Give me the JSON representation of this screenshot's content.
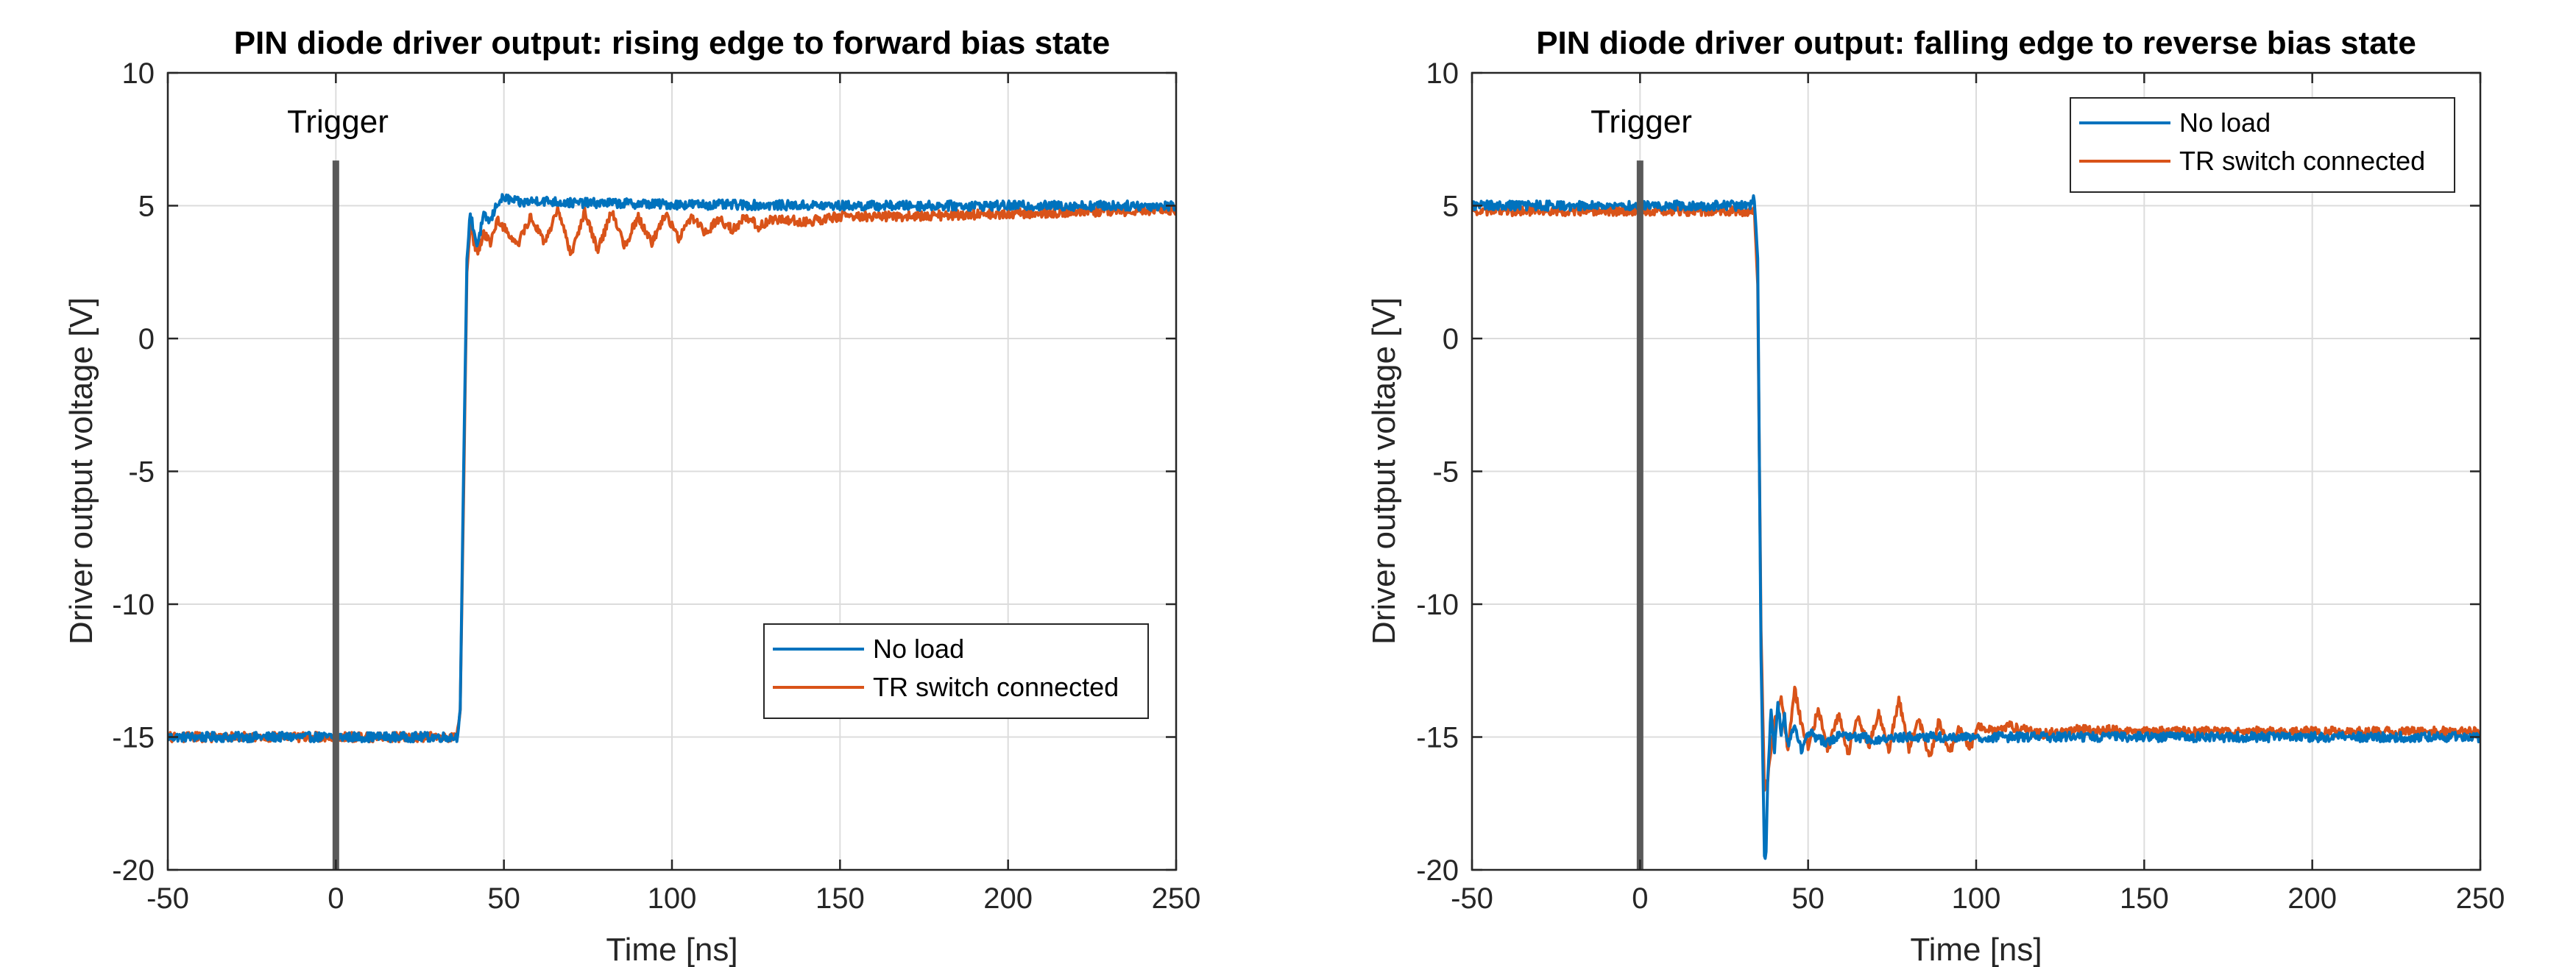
{
  "colors": {
    "no_load": "#0072BD",
    "tr_switch": "#D95319",
    "trigger": "#595959",
    "grid": "#DCDCDC",
    "axis": "#262626"
  },
  "chart_data": [
    {
      "type": "line",
      "title": "PIN diode driver output: rising edge to forward bias state",
      "xlabel": "Time [ns]",
      "ylabel": "Driver output voltage [V]",
      "xlim": [
        -50,
        250
      ],
      "ylim": [
        -20,
        10
      ],
      "xticks": [
        -50,
        0,
        50,
        100,
        150,
        200,
        250
      ],
      "yticks": [
        -20,
        -15,
        -10,
        -5,
        0,
        5,
        10
      ],
      "grid": true,
      "legend_position": "bottom-right",
      "annotation": {
        "text": "Trigger",
        "x": 0
      },
      "trigger_line": {
        "x": 0,
        "y_range": [
          -20,
          6.7
        ]
      },
      "series": [
        {
          "name": "No load",
          "color_key": "no_load",
          "x": [
            -50,
            36,
            37,
            38,
            39,
            40,
            42,
            44,
            46,
            48,
            50,
            55,
            60,
            70,
            80,
            100,
            150,
            200,
            250
          ],
          "y": [
            -15,
            -15,
            -14,
            -5,
            3,
            4.7,
            3.5,
            4.6,
            4.4,
            5.1,
            5.3,
            5.1,
            5.2,
            5.1,
            5.1,
            5.05,
            5.0,
            5.0,
            5.0
          ]
        },
        {
          "name": "TR switch connected",
          "color_key": "tr_switch",
          "x": [
            -50,
            36,
            37,
            38,
            39,
            40,
            42,
            44,
            46,
            48,
            50,
            54,
            58,
            62,
            66,
            70,
            74,
            78,
            82,
            86,
            90,
            94,
            98,
            102,
            106,
            110,
            114,
            118,
            122,
            126,
            130,
            140,
            150,
            170,
            200,
            250
          ],
          "y": [
            -15,
            -15,
            -14,
            -6,
            2.5,
            4.2,
            3.2,
            4.0,
            3.6,
            4.5,
            4.2,
            3.5,
            4.6,
            3.6,
            4.8,
            3.2,
            4.8,
            3.3,
            4.8,
            3.5,
            4.6,
            3.6,
            4.7,
            3.8,
            4.6,
            4.0,
            4.5,
            4.1,
            4.6,
            4.2,
            4.5,
            4.4,
            4.6,
            4.6,
            4.7,
            4.85
          ]
        }
      ]
    },
    {
      "type": "line",
      "title": "PIN diode driver output: falling edge to reverse bias state",
      "xlabel": "Time [ns]",
      "ylabel": "Driver output voltage [V]",
      "xlim": [
        -50,
        250
      ],
      "ylim": [
        -20,
        10
      ],
      "xticks": [
        -50,
        0,
        50,
        100,
        150,
        200,
        250
      ],
      "yticks": [
        -20,
        -15,
        -10,
        -5,
        0,
        5,
        10
      ],
      "grid": true,
      "legend_position": "top-right",
      "annotation": {
        "text": "Trigger",
        "x": 0
      },
      "trigger_line": {
        "x": 0,
        "y_range": [
          -20,
          6.7
        ]
      },
      "series": [
        {
          "name": "No load",
          "color_key": "no_load",
          "x": [
            -50,
            33,
            34,
            35,
            36,
            37,
            37.5,
            38,
            39,
            40,
            41,
            42,
            43,
            44,
            46,
            48,
            50,
            55,
            60,
            70,
            80,
            100,
            150,
            200,
            250
          ],
          "y": [
            5,
            5,
            5.3,
            3,
            -12,
            -19.5,
            -19.3,
            -16.5,
            -14,
            -15.5,
            -13.8,
            -14.8,
            -14.2,
            -15.3,
            -14.5,
            -15.5,
            -14.8,
            -15.2,
            -14.9,
            -15.1,
            -15.0,
            -15.0,
            -15.0,
            -15.0,
            -15.0
          ]
        },
        {
          "name": "TR switch connected",
          "color_key": "tr_switch",
          "x": [
            -50,
            33,
            34,
            35,
            36,
            37,
            38,
            39,
            40,
            42,
            44,
            46,
            48,
            50,
            53,
            56,
            59,
            62,
            65,
            68,
            71,
            74,
            77,
            80,
            83,
            86,
            89,
            92,
            95,
            98,
            101,
            105,
            110,
            120,
            130,
            150,
            200,
            250
          ],
          "y": [
            4.8,
            4.8,
            4.8,
            2,
            -11,
            -17,
            -16.5,
            -15.5,
            -14.5,
            -13.5,
            -15.5,
            -13.2,
            -14.5,
            -15.3,
            -14.0,
            -15.5,
            -14.1,
            -15.6,
            -14.2,
            -15.4,
            -14.0,
            -15.5,
            -13.6,
            -15.4,
            -14.3,
            -15.8,
            -14.4,
            -15.6,
            -14.6,
            -15.4,
            -14.6,
            -14.8,
            -14.6,
            -14.9,
            -14.7,
            -14.8,
            -14.8,
            -14.8
          ]
        }
      ]
    }
  ]
}
